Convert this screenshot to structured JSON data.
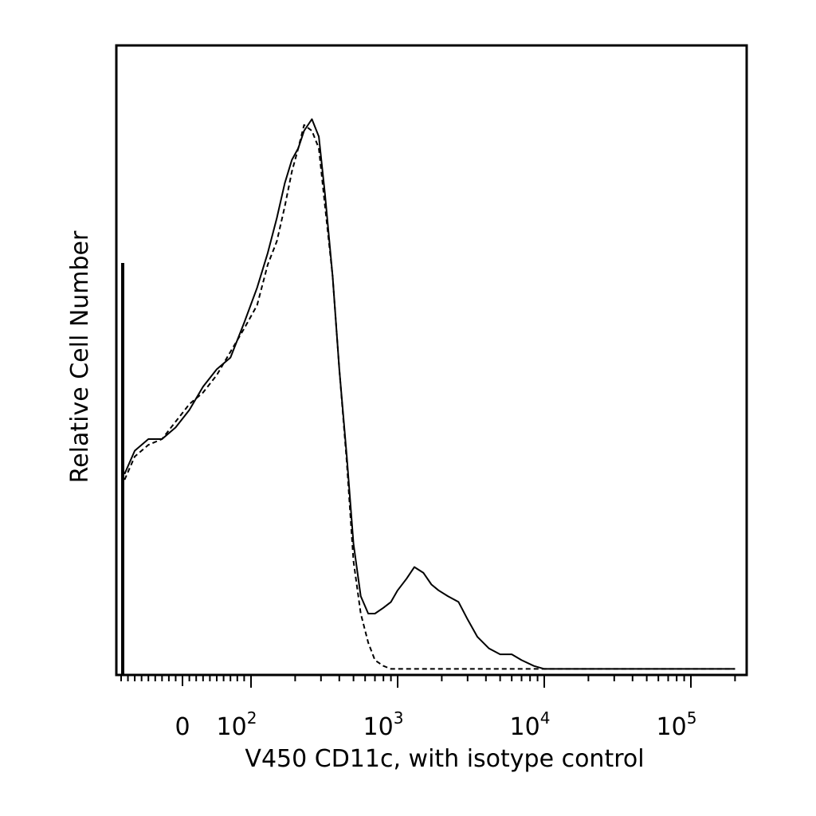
{
  "chart_data": {
    "type": "line",
    "xlabel": "V450 CD11c, with isotype control",
    "ylabel": "Relative Cell Number",
    "x_scale": "biexponential",
    "xlim": [
      -90,
      200000
    ],
    "ylim": [
      0,
      100
    ],
    "grid": false,
    "legend": "none",
    "x_tick_labels": [
      {
        "value": 0,
        "base": "0",
        "exp": ""
      },
      {
        "value": 100,
        "base": "10",
        "exp": "2"
      },
      {
        "value": 1000,
        "base": "10",
        "exp": "3"
      },
      {
        "value": 10000,
        "base": "10",
        "exp": "4"
      },
      {
        "value": 100000,
        "base": "10",
        "exp": "5"
      }
    ],
    "series": [
      {
        "style": "solid",
        "x": [
          -85,
          -70,
          -50,
          -30,
          -10,
          10,
          30,
          50,
          70,
          90,
          110,
          130,
          150,
          170,
          190,
          210,
          230,
          260,
          290,
          320,
          360,
          400,
          450,
          500,
          560,
          630,
          700,
          800,
          900,
          1000,
          1150,
          1300,
          1500,
          1700,
          1900,
          2200,
          2600,
          3000,
          3500,
          4200,
          5000,
          6000,
          7000,
          8500,
          10000,
          12000,
          15000,
          20000,
          30000,
          50000,
          100000,
          200000
        ],
        "y": [
          34,
          38,
          40,
          40,
          42,
          45,
          49,
          52,
          54,
          60,
          66,
          72,
          78,
          84,
          88,
          90,
          93,
          95,
          92,
          82,
          68,
          52,
          37,
          22,
          13,
          10,
          10,
          11,
          12,
          14,
          16,
          18,
          17,
          15,
          14,
          13,
          12,
          9,
          6,
          4,
          3,
          3,
          2,
          1,
          0.5,
          0.5,
          0.5,
          0.5,
          0.5,
          0.5,
          0.5,
          0.5
        ]
      },
      {
        "style": "dashed",
        "x": [
          -85,
          -70,
          -50,
          -30,
          -10,
          10,
          30,
          50,
          70,
          90,
          110,
          130,
          150,
          170,
          190,
          210,
          230,
          260,
          290,
          320,
          360,
          400,
          450,
          500,
          560,
          630,
          700,
          800,
          900,
          1000,
          1200,
          1500,
          2000,
          3000,
          5000,
          10000,
          200000
        ],
        "y": [
          33,
          37,
          39,
          40,
          43,
          46,
          48,
          51,
          55,
          59,
          63,
          70,
          74,
          80,
          86,
          90,
          94,
          93,
          90,
          80,
          68,
          52,
          36,
          19,
          10,
          5,
          2,
          1,
          0.5,
          0.5,
          0.5,
          0.5,
          0.5,
          0.5,
          0.5,
          0.5,
          0.5
        ]
      }
    ]
  }
}
